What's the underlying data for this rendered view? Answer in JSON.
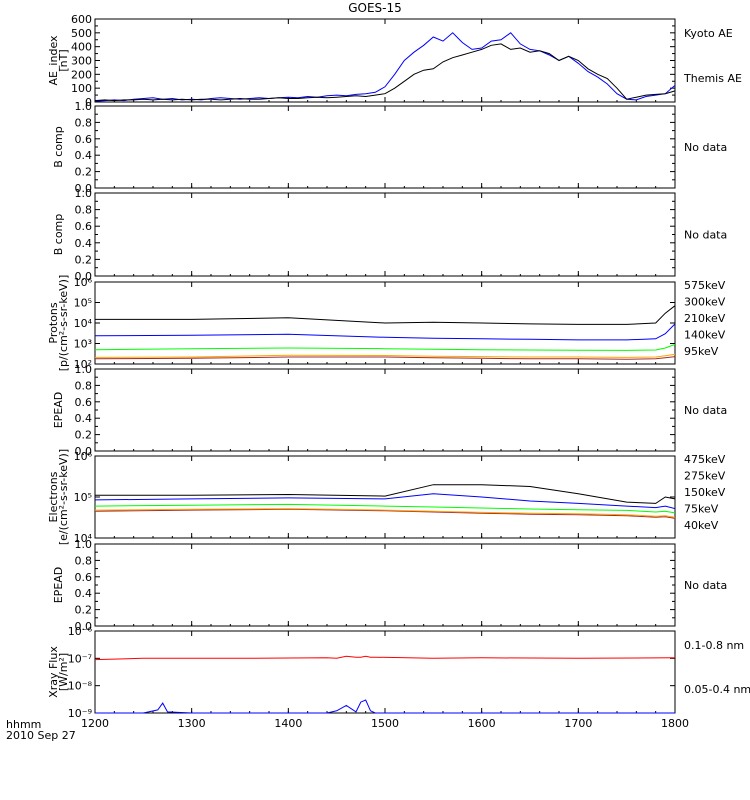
{
  "title": "GOES-15",
  "footer": {
    "time_label": "hhmm",
    "date_label": "2010 Sep 27"
  },
  "x_axis": {
    "range": [
      1200,
      1800
    ],
    "ticks": [
      "1200",
      "1300",
      "1400",
      "1500",
      "1600",
      "1700",
      "1800"
    ]
  },
  "chart_data": [
    {
      "type": "line",
      "ylabel_lines": [
        "AE_index",
        "[nT]"
      ],
      "ylim": [
        0,
        600
      ],
      "scale": "linear",
      "yticks": [
        "0",
        "100",
        "200",
        "300",
        "400",
        "500",
        "600"
      ],
      "legend": [
        "Kyoto AE",
        "Themis AE"
      ],
      "x": [
        1200,
        1210,
        1220,
        1230,
        1240,
        1250,
        1260,
        1270,
        1280,
        1290,
        1300,
        1310,
        1320,
        1330,
        1340,
        1350,
        1360,
        1370,
        1380,
        1390,
        1400,
        1410,
        1420,
        1430,
        1440,
        1450,
        1460,
        1470,
        1480,
        1490,
        1500,
        1510,
        1520,
        1530,
        1540,
        1550,
        1560,
        1570,
        1580,
        1590,
        1600,
        1610,
        1620,
        1630,
        1640,
        1650,
        1660,
        1670,
        1680,
        1690,
        1700,
        1710,
        1720,
        1730,
        1740,
        1750,
        1760,
        1770,
        1780,
        1790,
        1800
      ],
      "series": [
        {
          "name": "Kyoto AE",
          "color": "#0000ff",
          "values": [
            5,
            10,
            15,
            10,
            20,
            25,
            30,
            20,
            25,
            15,
            20,
            15,
            25,
            30,
            25,
            20,
            25,
            30,
            25,
            30,
            35,
            30,
            40,
            35,
            45,
            50,
            45,
            55,
            60,
            70,
            110,
            200,
            300,
            360,
            410,
            470,
            440,
            500,
            430,
            380,
            390,
            440,
            450,
            500,
            420,
            380,
            370,
            340,
            300,
            330,
            280,
            220,
            180,
            130,
            60,
            20,
            15,
            40,
            50,
            60,
            120
          ]
        },
        {
          "name": "Themis AE",
          "color": "#000000",
          "values": [
            10,
            15,
            10,
            15,
            15,
            20,
            15,
            20,
            15,
            20,
            15,
            20,
            20,
            15,
            20,
            25,
            20,
            20,
            25,
            30,
            25,
            25,
            30,
            35,
            30,
            35,
            40,
            45,
            40,
            50,
            60,
            100,
            150,
            200,
            230,
            240,
            290,
            320,
            340,
            360,
            380,
            410,
            420,
            380,
            390,
            360,
            370,
            350,
            300,
            330,
            300,
            240,
            200,
            170,
            100,
            20,
            35,
            50,
            55,
            60,
            80
          ]
        }
      ]
    },
    {
      "type": "line",
      "ylabel_lines": [
        "B comp"
      ],
      "ylim": [
        0,
        1
      ],
      "scale": "linear",
      "yticks": [
        "0.0",
        "0.2",
        "0.4",
        "0.6",
        "0.8",
        "1.0"
      ],
      "status": "No data"
    },
    {
      "type": "line",
      "ylabel_lines": [
        "B comp"
      ],
      "ylim": [
        0,
        1
      ],
      "scale": "linear",
      "yticks": [
        "0.0",
        "0.2",
        "0.4",
        "0.6",
        "0.8",
        "1.0"
      ],
      "status": "No data"
    },
    {
      "type": "line",
      "ylabel_lines": [
        "Protons",
        "[p/(cm²-s-sr-keV)]"
      ],
      "ylim": [
        100,
        1000000
      ],
      "scale": "log",
      "yticks": [
        "10²",
        "10³",
        "10⁴",
        "10⁵",
        "10⁶"
      ],
      "legend": [
        "575keV",
        "300keV",
        "210keV",
        "140keV",
        "95keV"
      ],
      "x": [
        1200,
        1300,
        1400,
        1500,
        1550,
        1600,
        1650,
        1700,
        1750,
        1780,
        1790,
        1800
      ],
      "series": [
        {
          "name": "575keV",
          "color": "#a52a2a",
          "values": [
            180,
            190,
            220,
            220,
            200,
            190,
            180,
            180,
            170,
            180,
            200,
            230
          ]
        },
        {
          "name": "300keV",
          "color": "#ffa500",
          "values": [
            210,
            220,
            270,
            260,
            240,
            230,
            220,
            220,
            210,
            220,
            250,
            300
          ]
        },
        {
          "name": "210keV",
          "color": "#00ff00",
          "values": [
            500,
            550,
            600,
            560,
            520,
            500,
            480,
            470,
            460,
            480,
            600,
            900
          ]
        },
        {
          "name": "140keV",
          "color": "#0000ff",
          "values": [
            2400,
            2500,
            2800,
            2000,
            1800,
            1700,
            1600,
            1500,
            1500,
            1700,
            3000,
            9000
          ]
        },
        {
          "name": "95keV",
          "color": "#000000",
          "values": [
            15000,
            15000,
            18000,
            10000,
            11000,
            10000,
            9000,
            8500,
            8500,
            10000,
            30000,
            70000
          ]
        }
      ]
    },
    {
      "type": "line",
      "ylabel_lines": [
        "EPEAD"
      ],
      "ylim": [
        0,
        1
      ],
      "scale": "linear",
      "yticks": [
        "0.0",
        "0.2",
        "0.4",
        "0.6",
        "0.8",
        "1.0"
      ],
      "status": "No data"
    },
    {
      "type": "line",
      "ylabel_lines": [
        "Electrons",
        "[e/(cm²-s-sr-keV)]"
      ],
      "ylim": [
        10000,
        1000000
      ],
      "scale": "log",
      "yticks": [
        "10⁴",
        "10⁵",
        "10⁶"
      ],
      "legend": [
        "475keV",
        "275keV",
        "150keV",
        "75keV",
        "40keV"
      ],
      "x": [
        1200,
        1300,
        1400,
        1500,
        1550,
        1600,
        1650,
        1700,
        1750,
        1780,
        1790,
        1800
      ],
      "series": [
        {
          "name": "475keV",
          "color": "#a52a2a",
          "values": [
            45000,
            48000,
            50000,
            46000,
            43000,
            40000,
            38000,
            37000,
            35000,
            32000,
            33000,
            30000
          ]
        },
        {
          "name": "275keV",
          "color": "#ffa500",
          "values": [
            48000,
            50000,
            52000,
            48000,
            45000,
            42000,
            40000,
            39000,
            37000,
            34000,
            35000,
            32000
          ]
        },
        {
          "name": "150keV",
          "color": "#00ff00",
          "values": [
            60000,
            63000,
            66000,
            60000,
            57000,
            54000,
            51000,
            49000,
            47000,
            43000,
            45000,
            41000
          ]
        },
        {
          "name": "75keV",
          "color": "#0000ff",
          "values": [
            85000,
            90000,
            95000,
            90000,
            120000,
            100000,
            80000,
            70000,
            60000,
            55000,
            60000,
            52000
          ]
        },
        {
          "name": "40keV",
          "color": "#000000",
          "values": [
            110000,
            110000,
            115000,
            105000,
            200000,
            200000,
            180000,
            120000,
            75000,
            70000,
            100000,
            90000
          ]
        }
      ]
    },
    {
      "type": "line",
      "ylabel_lines": [
        "EPEAD"
      ],
      "ylim": [
        0,
        1
      ],
      "scale": "linear",
      "yticks": [
        "0.0",
        "0.2",
        "0.4",
        "0.6",
        "0.8",
        "1.0"
      ],
      "status": "No data"
    },
    {
      "type": "line",
      "ylabel_lines": [
        "Xray Flux",
        "[W/m²]"
      ],
      "ylim": [
        1e-09,
        1e-06
      ],
      "scale": "log",
      "yticks": [
        "10⁻⁹",
        "10⁻⁸",
        "10⁻⁷",
        "10⁻⁶"
      ],
      "legend": [
        "0.1-0.8 nm",
        "0.05-0.4 nm"
      ],
      "x": [
        1200,
        1250,
        1265,
        1270,
        1275,
        1300,
        1350,
        1440,
        1450,
        1460,
        1470,
        1475,
        1480,
        1485,
        1490,
        1550,
        1600,
        1700,
        1800
      ],
      "series": [
        {
          "name": "0.1-0.8 nm",
          "color": "#ff0000",
          "values": [
            9e-08,
            1e-07,
            1e-07,
            1e-07,
            1e-07,
            1e-07,
            1e-07,
            1.05e-07,
            1e-07,
            1.2e-07,
            1.1e-07,
            1.1e-07,
            1.2e-07,
            1.1e-07,
            1.1e-07,
            1e-07,
            1.05e-07,
            1e-07,
            1.05e-07
          ]
        },
        {
          "name": "0.05-0.4 nm",
          "color": "#0000ff",
          "values": [
            1e-09,
            1e-09,
            1.3e-09,
            2.3e-09,
            1.1e-09,
            1e-09,
            1e-09,
            1e-09,
            1.2e-09,
            1.9e-09,
            1.1e-09,
            2.5e-09,
            3e-09,
            1.2e-09,
            1e-09,
            1e-09,
            1e-09,
            1e-09,
            1e-09
          ]
        }
      ]
    }
  ]
}
